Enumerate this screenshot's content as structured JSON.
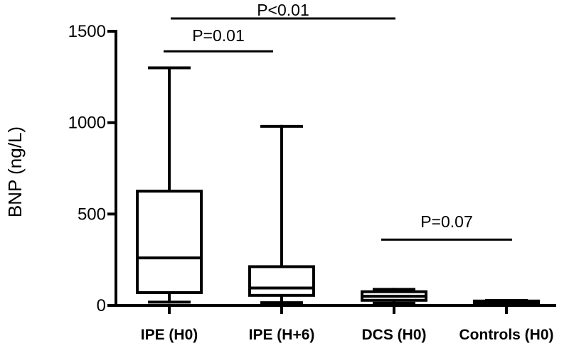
{
  "chart_data": {
    "type": "box",
    "title": "",
    "xlabel": "",
    "ylabel": "BNP (ng/L)",
    "ylim": [
      0,
      1500
    ],
    "yticks": [
      0,
      500,
      1000,
      1500
    ],
    "yticks_labels": [
      "0",
      "500",
      "1000",
      "1500"
    ],
    "grid": false,
    "legend": "none",
    "categories": [
      "IPE (H0)",
      "IPE (H+6)",
      "DCS (H0)",
      "Controls (H0)"
    ],
    "boxes": [
      {
        "category": "IPE (H0)",
        "min": 18,
        "q1": 70,
        "median": 260,
        "q3": 625,
        "max": 1300
      },
      {
        "category": "IPE (H+6)",
        "min": 15,
        "q1": 55,
        "median": 95,
        "q3": 212,
        "max": 980
      },
      {
        "category": "DCS (H0)",
        "min": 12,
        "q1": 28,
        "median": 50,
        "q3": 75,
        "max": 88
      },
      {
        "category": "Controls (H0)",
        "min": 12,
        "q1": 15,
        "median": 20,
        "q3": 24,
        "max": 27
      }
    ],
    "annotations": [
      {
        "label": "P<0.01",
        "from": "IPE (H0)",
        "to": "DCS (H0)",
        "level": 1570
      },
      {
        "label": "P=0.01",
        "from": "IPE (H0)",
        "to": "IPE (H+6)",
        "level": 1390
      },
      {
        "label": "P=0.07",
        "from": "DCS (H0)",
        "to": "Controls (H0)",
        "level": 360
      }
    ]
  }
}
